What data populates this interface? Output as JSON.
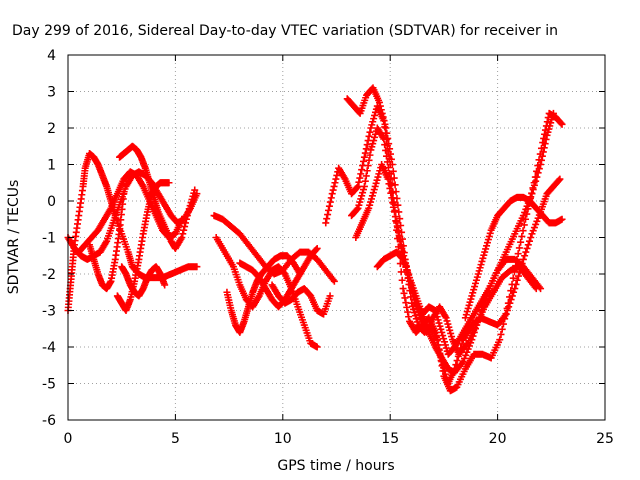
{
  "chart_data": {
    "type": "scatter",
    "title": "Day 299 of 2016, Sidereal Day-to-day VTEC variation (SDTVAR) for receiver in",
    "xlabel": "GPS time / hours",
    "ylabel": "SDTVAR / TECUs",
    "xlim": [
      0,
      25
    ],
    "ylim": [
      -6,
      4
    ],
    "xticks": [
      "0",
      "5",
      "10",
      "15",
      "20",
      "25"
    ],
    "yticks": [
      "-6",
      "-5",
      "-4",
      "-3",
      "-2",
      "-1",
      "0",
      "1",
      "2",
      "3",
      "4"
    ],
    "grid": true,
    "marker": "+",
    "color": "#ff0000",
    "series": [
      {
        "x": [
          0.0,
          0.1,
          0.2,
          0.3,
          0.5,
          0.7,
          0.8,
          1.0,
          1.2,
          1.4,
          1.6,
          1.8,
          2.0,
          2.2,
          2.5,
          2.8,
          3.0,
          3.3,
          3.6,
          4.0,
          4.4,
          4.8,
          5.2,
          5.6,
          6.0
        ],
        "y": [
          -3.0,
          -2.4,
          -1.8,
          -1.2,
          -0.4,
          0.4,
          0.9,
          1.3,
          1.2,
          1.0,
          0.7,
          0.4,
          0.0,
          -0.4,
          -0.9,
          -1.4,
          -1.8,
          -2.0,
          -2.1,
          -2.1,
          -2.1,
          -2.0,
          -1.9,
          -1.8,
          -1.8
        ]
      },
      {
        "x": [
          0.0,
          0.3,
          0.6,
          0.9,
          1.2,
          1.5,
          1.8,
          2.1,
          2.4,
          2.7,
          3.0,
          3.3,
          3.6,
          3.9,
          4.2,
          4.5,
          4.8,
          5.1,
          5.4,
          5.7,
          6.0
        ],
        "y": [
          -1.0,
          -1.3,
          -1.5,
          -1.6,
          -1.5,
          -1.4,
          -1.1,
          -0.6,
          -0.1,
          0.4,
          0.7,
          0.8,
          0.7,
          0.5,
          0.2,
          -0.1,
          -0.4,
          -0.6,
          -0.5,
          -0.2,
          0.2
        ]
      },
      {
        "x": [
          0.5,
          0.8,
          1.1,
          1.4,
          1.7,
          2.0,
          2.3,
          2.6,
          2.9,
          3.2,
          3.5,
          3.8,
          4.1,
          4.4,
          4.7,
          5.0,
          5.3
        ],
        "y": [
          -1.4,
          -1.2,
          -1.0,
          -0.8,
          -0.5,
          -0.2,
          0.2,
          0.6,
          0.8,
          0.7,
          0.4,
          0.0,
          -0.4,
          -0.8,
          -1.0,
          -0.9,
          -0.5
        ]
      },
      {
        "x": [
          1.0,
          1.2,
          1.4,
          1.6,
          1.8,
          2.0,
          2.2,
          2.4,
          2.6
        ],
        "y": [
          -1.2,
          -1.6,
          -2.0,
          -2.3,
          -2.4,
          -2.2,
          -1.6,
          -0.8,
          0.2
        ]
      },
      {
        "x": [
          2.4,
          2.6,
          2.8,
          3.0,
          3.2,
          3.4,
          3.6,
          3.8,
          4.0,
          4.2,
          4.5,
          4.8,
          5.0,
          5.3,
          5.6,
          5.9
        ],
        "y": [
          1.2,
          1.3,
          1.4,
          1.5,
          1.4,
          1.2,
          0.9,
          0.5,
          0.1,
          -0.3,
          -0.7,
          -1.1,
          -1.3,
          -1.0,
          -0.3,
          0.3
        ]
      },
      {
        "x": [
          2.3,
          2.5,
          2.7,
          2.9,
          3.1,
          3.3,
          3.5,
          3.7,
          3.9,
          4.1,
          4.3,
          4.5,
          4.7
        ],
        "y": [
          -2.6,
          -2.8,
          -3.0,
          -2.7,
          -2.2,
          -1.6,
          -0.9,
          -0.3,
          0.2,
          0.4,
          0.5,
          0.5,
          0.5
        ]
      },
      {
        "x": [
          2.5,
          2.7,
          2.9,
          3.1,
          3.3,
          3.5,
          3.7,
          3.9,
          4.1,
          4.3,
          4.5
        ],
        "y": [
          -1.8,
          -2.0,
          -2.3,
          -2.5,
          -2.6,
          -2.4,
          -2.1,
          -1.9,
          -1.8,
          -2.0,
          -2.3
        ]
      },
      {
        "x": [
          6.8,
          7.2,
          7.6,
          8.0,
          8.4,
          8.8,
          9.2,
          9.6,
          10.0,
          10.4,
          10.8,
          11.2,
          11.6,
          12.0,
          12.4
        ],
        "y": [
          -0.4,
          -0.5,
          -0.7,
          -0.9,
          -1.2,
          -1.5,
          -1.8,
          -2.0,
          -1.9,
          -1.6,
          -1.4,
          -1.4,
          -1.6,
          -1.9,
          -2.2
        ]
      },
      {
        "x": [
          6.9,
          7.3,
          7.7,
          8.0,
          8.3,
          8.6,
          8.9,
          9.2,
          9.5,
          9.8,
          10.1,
          10.4,
          10.7,
          11.0,
          11.3,
          11.6
        ],
        "y": [
          -1.0,
          -1.4,
          -1.8,
          -2.3,
          -2.7,
          -2.9,
          -2.6,
          -2.2,
          -1.9,
          -1.8,
          -2.0,
          -2.4,
          -2.9,
          -3.4,
          -3.9,
          -4.0
        ]
      },
      {
        "x": [
          7.4,
          7.6,
          7.8,
          8.0,
          8.2,
          8.4,
          8.6,
          8.8,
          9.0,
          9.3,
          9.6,
          9.9,
          10.2,
          10.5,
          10.8
        ],
        "y": [
          -2.5,
          -3.0,
          -3.4,
          -3.6,
          -3.3,
          -2.9,
          -2.5,
          -2.2,
          -2.0,
          -1.8,
          -1.6,
          -1.5,
          -1.5,
          -1.7,
          -2.0
        ]
      },
      {
        "x": [
          8.0,
          8.3,
          8.6,
          8.9,
          9.2,
          9.5,
          9.8,
          10.1,
          10.4,
          10.7,
          11.0,
          11.3,
          11.6
        ],
        "y": [
          -1.7,
          -1.8,
          -1.9,
          -2.1,
          -2.4,
          -2.7,
          -2.9,
          -2.7,
          -2.4,
          -2.1,
          -1.8,
          -1.5,
          -1.3
        ]
      },
      {
        "x": [
          9.5,
          9.8,
          10.1,
          10.4,
          10.7,
          11.0,
          11.3,
          11.6,
          11.9,
          12.2
        ],
        "y": [
          -2.3,
          -2.6,
          -2.8,
          -2.7,
          -2.5,
          -2.4,
          -2.6,
          -3.0,
          -3.1,
          -2.6
        ]
      },
      {
        "x": [
          12.0,
          12.3,
          12.6,
          12.9,
          13.2,
          13.5,
          13.8,
          14.1,
          14.4,
          14.7,
          15.0,
          15.3,
          15.6,
          15.9,
          16.2,
          16.5,
          16.8,
          17.1,
          17.4,
          17.7,
          18.0,
          18.4,
          18.8,
          19.2,
          19.6,
          20.0,
          20.4,
          20.8,
          21.2,
          21.6,
          22.0,
          22.3,
          22.6,
          22.9
        ],
        "y": [
          -0.6,
          0.2,
          0.9,
          0.6,
          0.2,
          0.4,
          1.2,
          2.0,
          2.6,
          2.2,
          1.0,
          -0.8,
          -2.4,
          -3.3,
          -3.6,
          -3.4,
          -3.2,
          -3.6,
          -4.4,
          -5.0,
          -4.6,
          -3.8,
          -3.4,
          -3.2,
          -3.3,
          -3.4,
          -3.1,
          -2.4,
          -1.6,
          -0.9,
          -0.3,
          0.2,
          0.4,
          0.6
        ]
      },
      {
        "x": [
          13.0,
          13.3,
          13.6,
          13.9,
          14.2,
          14.5,
          14.8,
          15.1,
          15.4,
          15.7,
          16.0,
          16.3,
          16.6,
          16.9,
          17.2,
          17.5,
          17.8,
          18.1,
          18.5,
          18.9,
          19.3,
          19.7,
          20.1,
          20.5,
          20.9,
          21.3,
          21.7,
          22.1,
          22.4,
          22.7,
          23.0
        ],
        "y": [
          2.8,
          2.6,
          2.4,
          2.9,
          3.1,
          2.7,
          2.0,
          1.0,
          -0.3,
          -1.6,
          -2.8,
          -3.4,
          -3.6,
          -3.4,
          -3.8,
          -4.8,
          -5.2,
          -5.1,
          -4.6,
          -4.2,
          -4.2,
          -4.3,
          -3.8,
          -2.8,
          -1.6,
          -0.5,
          0.5,
          1.6,
          2.4,
          2.3,
          2.1
        ]
      },
      {
        "x": [
          13.2,
          13.5,
          13.8,
          14.1,
          14.4,
          14.7,
          15.0,
          15.3,
          15.6,
          15.9,
          16.2,
          16.5,
          16.8,
          17.1,
          17.4,
          17.7,
          18.0,
          18.4,
          18.8,
          19.2,
          19.6,
          20.0,
          20.4,
          20.8,
          21.2,
          21.6,
          22.0,
          22.3,
          22.6
        ],
        "y": [
          -0.4,
          -0.2,
          0.4,
          1.4,
          2.0,
          1.7,
          0.6,
          -0.6,
          -1.5,
          -2.2,
          -2.8,
          -3.1,
          -2.9,
          -3.0,
          -3.6,
          -4.2,
          -4.0,
          -3.6,
          -3.2,
          -2.8,
          -2.4,
          -1.9,
          -1.4,
          -0.9,
          -0.4,
          0.2,
          1.0,
          1.8,
          2.4
        ]
      },
      {
        "x": [
          13.4,
          13.7,
          14.0,
          14.3,
          14.6,
          14.9,
          15.2,
          15.5,
          15.8,
          16.1,
          16.4,
          16.7,
          17.0,
          17.3,
          17.6,
          17.9,
          18.2,
          18.6,
          19.0,
          19.4,
          19.8,
          20.2,
          20.6,
          21.0,
          21.4,
          21.8
        ],
        "y": [
          -1.0,
          -0.6,
          -0.2,
          0.4,
          1.0,
          0.6,
          -0.3,
          -1.2,
          -1.9,
          -2.6,
          -3.2,
          -3.6,
          -3.2,
          -2.9,
          -3.2,
          -3.8,
          -4.2,
          -3.9,
          -3.4,
          -2.9,
          -2.5,
          -2.1,
          -1.9,
          -1.8,
          -2.1,
          -2.4
        ]
      },
      {
        "x": [
          14.4,
          14.7,
          15.0,
          15.3,
          15.6,
          15.9,
          16.2,
          16.5,
          16.8,
          17.1,
          17.4,
          17.7,
          18.0,
          18.4,
          18.8,
          19.2,
          19.6,
          20.0,
          20.4,
          20.8,
          21.2,
          21.6,
          22.0
        ],
        "y": [
          -1.8,
          -1.6,
          -1.5,
          -1.4,
          -1.6,
          -2.1,
          -2.6,
          -3.1,
          -3.6,
          -4.0,
          -4.3,
          -4.6,
          -4.7,
          -4.4,
          -3.8,
          -3.1,
          -2.4,
          -1.9,
          -1.6,
          -1.6,
          -1.8,
          -2.1,
          -2.4
        ]
      },
      {
        "x": [
          18.5,
          18.8,
          19.1,
          19.4,
          19.7,
          20.0,
          20.3,
          20.6,
          20.9,
          21.2,
          21.5,
          21.8,
          22.1,
          22.4,
          22.7,
          23.0
        ],
        "y": [
          -3.2,
          -2.6,
          -2.0,
          -1.4,
          -0.8,
          -0.4,
          -0.2,
          0.0,
          0.1,
          0.1,
          0.0,
          -0.2,
          -0.4,
          -0.6,
          -0.6,
          -0.5
        ]
      }
    ]
  }
}
